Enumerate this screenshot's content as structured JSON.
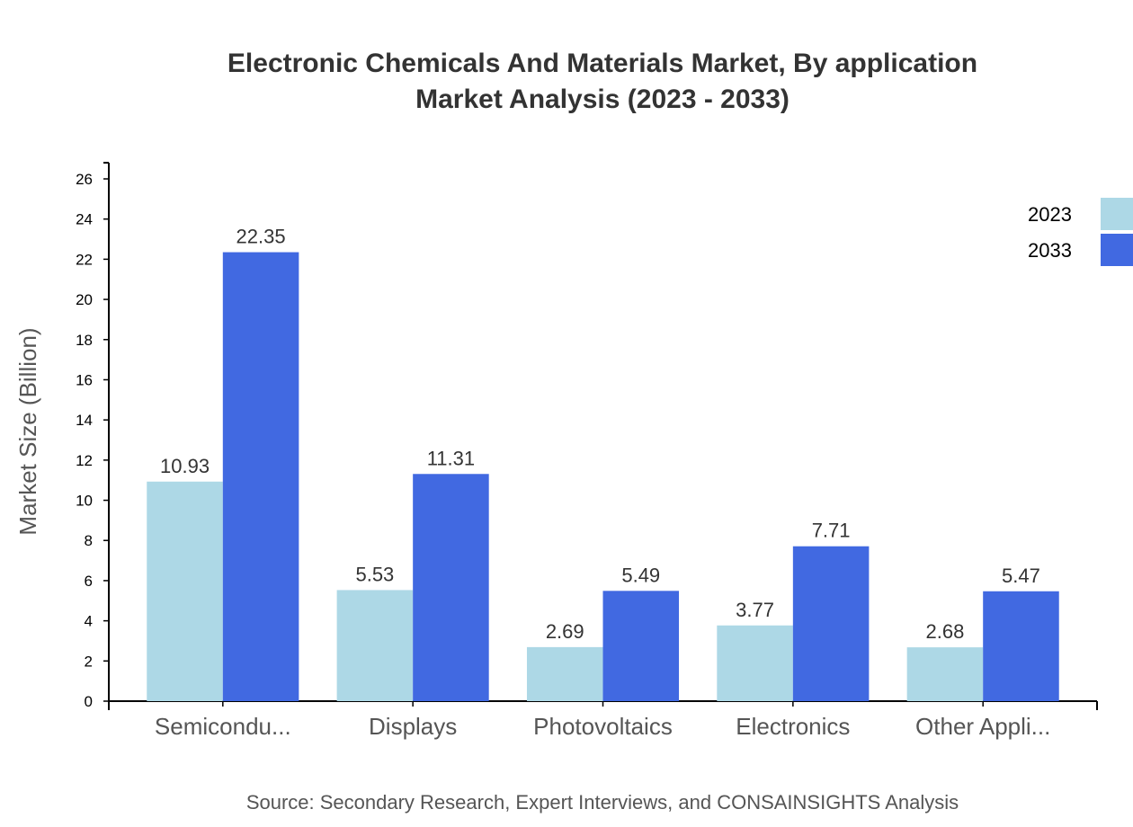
{
  "chart_data": {
    "type": "bar",
    "title": "Electronic Chemicals And Materials Market, By application",
    "subtitle": "Market Analysis (2023 - 2033)",
    "xlabel": "",
    "ylabel": "Market Size (Billion)",
    "ylim": [
      0,
      26.8
    ],
    "yticks": [
      0,
      2,
      4,
      6,
      8,
      10,
      12,
      14,
      16,
      18,
      20,
      22,
      24,
      26
    ],
    "categories": [
      "Semicondu...",
      "Displays",
      "Photovoltaics",
      "Electronics",
      "Other Appli..."
    ],
    "series": [
      {
        "name": "2023",
        "color": "#add8e6",
        "values": [
          10.93,
          5.53,
          2.69,
          3.77,
          2.68
        ]
      },
      {
        "name": "2033",
        "color": "#4169e1",
        "values": [
          22.35,
          11.31,
          5.49,
          7.71,
          5.47
        ]
      }
    ],
    "legend_position": "top-right",
    "grid": false,
    "source": "Source: Secondary Research, Expert Interviews, and CONSAINSIGHTS Analysis"
  }
}
